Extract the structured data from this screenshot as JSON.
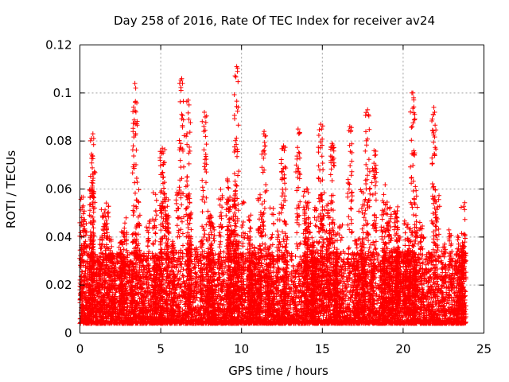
{
  "chart_data": {
    "type": "scatter",
    "title": "Day 258 of 2016, Rate Of TEC Index for receiver av24",
    "xlabel": "GPS time / hours",
    "ylabel": "ROTI / TECUs",
    "xlim": [
      0,
      25
    ],
    "ylim": [
      0,
      0.12
    ],
    "xticks": [
      0,
      5,
      10,
      15,
      20,
      25
    ],
    "xtick_labels": [
      "0",
      "5",
      "10",
      "15",
      "20",
      "25"
    ],
    "yticks": [
      0,
      0.02,
      0.04,
      0.06,
      0.08,
      0.1,
      0.12
    ],
    "ytick_labels": [
      "0",
      "0.02",
      "0.04",
      "0.06",
      "0.08",
      "0.1",
      "0.12"
    ],
    "grid": true,
    "marker": "plus",
    "color": "#ff0000",
    "x_range_of_data": [
      0,
      23.9
    ],
    "series": [
      {
        "name": "ROTI",
        "description_points": "dense band 0.003-0.03 across 0-24 h with spikes",
        "peaks": [
          {
            "x": 3.4,
            "y": 0.104
          },
          {
            "x": 6.3,
            "y": 0.106
          },
          {
            "x": 6.7,
            "y": 0.097
          },
          {
            "x": 7.7,
            "y": 0.092
          },
          {
            "x": 9.7,
            "y": 0.111
          },
          {
            "x": 11.4,
            "y": 0.084
          },
          {
            "x": 13.5,
            "y": 0.085
          },
          {
            "x": 14.9,
            "y": 0.087
          },
          {
            "x": 16.7,
            "y": 0.086
          },
          {
            "x": 17.8,
            "y": 0.093
          },
          {
            "x": 20.6,
            "y": 0.1
          },
          {
            "x": 21.9,
            "y": 0.094
          },
          {
            "x": 0.8,
            "y": 0.083
          },
          {
            "x": 5.1,
            "y": 0.077
          },
          {
            "x": 12.6,
            "y": 0.078
          },
          {
            "x": 15.6,
            "y": 0.079
          },
          {
            "x": 18.2,
            "y": 0.076
          }
        ]
      }
    ]
  }
}
